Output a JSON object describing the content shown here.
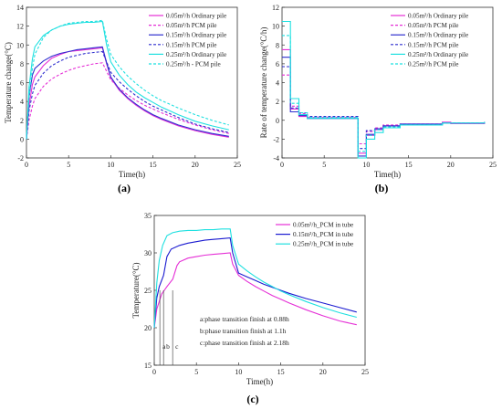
{
  "charts": {
    "a": {
      "panel_label": "(a)",
      "xlabel": "Time(h)",
      "ylabel": "Temperature change(°C)",
      "xlim": [
        0,
        25
      ],
      "ylim": [
        -2,
        14
      ],
      "xticks": [
        0,
        5,
        10,
        15,
        20,
        25
      ],
      "yticks": [
        -2,
        0,
        2,
        4,
        6,
        8,
        10,
        12,
        14
      ],
      "legend": [
        {
          "label": "0.05m³/h Ordinary pile",
          "color": "#e52fd6",
          "dash": "solid"
        },
        {
          "label": "0.05m³/h PCM pile",
          "color": "#e52fd6",
          "dash": "dashed"
        },
        {
          "label": "0.15m³/h Ordinary pile",
          "color": "#2f2fcf",
          "dash": "solid"
        },
        {
          "label": "0.15m³/h PCM pile",
          "color": "#2f2fcf",
          "dash": "dashed"
        },
        {
          "label": "0.25m³/h Ordinary pile",
          "color": "#1fe0e0",
          "dash": "solid"
        },
        {
          "label": "0.25m³/h - PCM pile",
          "color": "#1fe0e0",
          "dash": "dashed"
        }
      ]
    },
    "b": {
      "panel_label": "(b)",
      "xlabel": "Time(h)",
      "ylabel": "Rate of temperature change(°C/h)",
      "xlim": [
        0,
        25
      ],
      "ylim": [
        -4,
        12
      ],
      "xticks": [
        0,
        5,
        10,
        15,
        20,
        25
      ],
      "yticks": [
        -4,
        -2,
        0,
        2,
        4,
        6,
        8,
        10,
        12
      ],
      "legend": [
        {
          "label": "0.05m³/h Ordinary pile",
          "color": "#e52fd6",
          "dash": "solid"
        },
        {
          "label": "0.05m³/h PCM pile",
          "color": "#e52fd6",
          "dash": "dashed"
        },
        {
          "label": "0.15m³/h Ordinary pile",
          "color": "#2f2fcf",
          "dash": "solid"
        },
        {
          "label": "0.15m³/h PCM pile",
          "color": "#2f2fcf",
          "dash": "dashed"
        },
        {
          "label": "0.25m³/h Ordinary pile",
          "color": "#1fe0e0",
          "dash": "solid"
        },
        {
          "label": "0.25m³/h PCM pile",
          "color": "#1fe0e0",
          "dash": "dashed"
        }
      ]
    },
    "c": {
      "panel_label": "(c)",
      "xlabel": "Time(h)",
      "ylabel": "Temperature(°C)",
      "xlim": [
        0,
        25
      ],
      "ylim": [
        15,
        35
      ],
      "xticks": [
        0,
        5,
        10,
        15,
        20,
        25
      ],
      "yticks": [
        15,
        20,
        25,
        30,
        35
      ],
      "legend": [
        {
          "label": "0.05m³/h_PCM in tube",
          "color": "#e52fd6",
          "dash": "solid"
        },
        {
          "label": "0.15m³/h_PCM in tube",
          "color": "#1a1ad0",
          "dash": "solid"
        },
        {
          "label": "0.25m³/h_PCM in tube",
          "color": "#1fe0e0",
          "dash": "solid"
        }
      ],
      "annotations": [
        "a:phase transition finish at 0.88h",
        "b:phase transition finish at 1.1h",
        "c:phase transition finish at 2.18h"
      ],
      "marker_letters": [
        "a",
        "b",
        "c"
      ],
      "marker_x": [
        0.88,
        1.1,
        2.18
      ]
    }
  },
  "chart_data": [
    {
      "type": "line",
      "xlabel": "Time(h)",
      "ylabel": "Temperature change(°C)",
      "xlim": [
        0,
        25
      ],
      "ylim": [
        -2,
        14
      ],
      "series": [
        {
          "name": "0.05m³/h Ordinary pile",
          "color": "#e52fd6",
          "dash": "solid",
          "x": [
            0,
            0.3,
            0.7,
            1,
            2,
            3,
            4,
            5,
            6,
            7,
            8,
            9,
            9.5,
            10,
            11,
            12,
            13,
            14,
            15,
            16,
            18,
            20,
            22,
            24
          ],
          "y": [
            0,
            3.5,
            5.8,
            6.6,
            7.8,
            8.6,
            9.0,
            9.3,
            9.4,
            9.5,
            9.6,
            9.7,
            8.0,
            6.5,
            5.2,
            4.3,
            3.6,
            3.0,
            2.5,
            2.1,
            1.4,
            0.9,
            0.5,
            0.2
          ]
        },
        {
          "name": "0.05m³/h PCM pile",
          "color": "#e52fd6",
          "dash": "dashed",
          "x": [
            0,
            0.3,
            0.7,
            1,
            2,
            3,
            4,
            5,
            6,
            7,
            8,
            9,
            9.5,
            10,
            11,
            12,
            13,
            14,
            15,
            16,
            18,
            20,
            22,
            24
          ],
          "y": [
            0,
            2.0,
            3.5,
            4.3,
            5.6,
            6.4,
            6.9,
            7.3,
            7.6,
            7.8,
            8.0,
            8.1,
            7.2,
            6.3,
            5.4,
            4.7,
            4.1,
            3.6,
            3.2,
            2.8,
            2.1,
            1.5,
            1.0,
            0.6
          ]
        },
        {
          "name": "0.15m³/h Ordinary pile",
          "color": "#2f2fcf",
          "dash": "solid",
          "x": [
            0,
            0.3,
            0.7,
            1,
            2,
            3,
            4,
            5,
            6,
            7,
            8,
            9,
            9.5,
            10,
            11,
            12,
            13,
            14,
            15,
            16,
            18,
            20,
            22,
            24
          ],
          "y": [
            0,
            4.5,
            6.8,
            7.5,
            8.3,
            8.8,
            9.1,
            9.3,
            9.5,
            9.6,
            9.7,
            9.8,
            8.1,
            6.6,
            5.3,
            4.4,
            3.7,
            3.1,
            2.6,
            2.2,
            1.5,
            1.0,
            0.6,
            0.3
          ]
        },
        {
          "name": "0.15m³/h PCM pile",
          "color": "#2f2fcf",
          "dash": "dashed",
          "x": [
            0,
            0.3,
            0.7,
            1,
            2,
            3,
            4,
            5,
            6,
            7,
            8,
            9,
            9.5,
            10,
            11,
            12,
            13,
            14,
            15,
            16,
            18,
            20,
            22,
            24
          ],
          "y": [
            0,
            3.0,
            4.8,
            5.7,
            7.0,
            7.8,
            8.3,
            8.7,
            8.9,
            9.1,
            9.2,
            9.3,
            8.2,
            7.1,
            6.1,
            5.3,
            4.6,
            4.0,
            3.5,
            3.1,
            2.3,
            1.6,
            1.1,
            0.7
          ]
        },
        {
          "name": "0.25m³/h Ordinary pile",
          "color": "#1fe0e0",
          "dash": "solid",
          "x": [
            0,
            0.3,
            0.7,
            1,
            2,
            3,
            4,
            5,
            6,
            7,
            8,
            9,
            9.5,
            10,
            11,
            12,
            13,
            14,
            15,
            16,
            18,
            20,
            22,
            24
          ],
          "y": [
            0,
            5.5,
            8.5,
            9.8,
            11.0,
            11.6,
            12.0,
            12.2,
            12.3,
            12.4,
            12.4,
            12.5,
            10.0,
            8.2,
            6.8,
            5.8,
            5.0,
            4.4,
            3.9,
            3.4,
            2.6,
            1.9,
            1.4,
            1.0
          ]
        },
        {
          "name": "0.25m³/h - PCM pile",
          "color": "#1fe0e0",
          "dash": "dashed",
          "x": [
            0,
            0.3,
            0.7,
            1,
            2,
            3,
            4,
            5,
            6,
            7,
            8,
            9,
            9.5,
            10,
            11,
            12,
            13,
            14,
            15,
            16,
            18,
            20,
            22,
            24
          ],
          "y": [
            0,
            4.5,
            7.5,
            9.0,
            10.8,
            11.6,
            12.0,
            12.3,
            12.4,
            12.5,
            12.5,
            12.6,
            10.6,
            9.0,
            7.7,
            6.7,
            5.9,
            5.2,
            4.6,
            4.1,
            3.3,
            2.6,
            2.0,
            1.5
          ]
        }
      ]
    },
    {
      "type": "line",
      "xlabel": "Time(h)",
      "ylabel": "Rate of temperature change(°C/h)",
      "xlim": [
        0,
        25
      ],
      "ylim": [
        -4,
        12
      ],
      "series": [
        {
          "name": "0.05m³/h Ordinary pile",
          "color": "#e52fd6",
          "dash": "solid",
          "step": true,
          "x": [
            0,
            1,
            2,
            3,
            9,
            10,
            11,
            12,
            14,
            19,
            20,
            24
          ],
          "y": [
            7.5,
            1.2,
            0.4,
            0.2,
            -3.5,
            -1.6,
            -1.0,
            -0.6,
            -0.4,
            -0.2,
            -0.35,
            -0.2
          ]
        },
        {
          "name": "0.05m³/h PCM pile",
          "color": "#e52fd6",
          "dash": "dashed",
          "step": true,
          "x": [
            0,
            1,
            2,
            3,
            9,
            10,
            11,
            12,
            14,
            19,
            20,
            24
          ],
          "y": [
            4.8,
            1.5,
            0.7,
            0.3,
            -2.5,
            -1.2,
            -0.8,
            -0.5,
            -0.4,
            -0.3,
            -0.3,
            -0.2
          ]
        },
        {
          "name": "0.15m³/h Ordinary pile",
          "color": "#2f2fcf",
          "dash": "solid",
          "step": true,
          "x": [
            0,
            1,
            2,
            3,
            9,
            10,
            11,
            12,
            14,
            19,
            20,
            24
          ],
          "y": [
            6.7,
            0.9,
            0.5,
            0.2,
            -3.8,
            -1.5,
            -0.9,
            -0.6,
            -0.4,
            -0.3,
            -0.3,
            -0.2
          ]
        },
        {
          "name": "0.15m³/h PCM pile",
          "color": "#2f2fcf",
          "dash": "dashed",
          "step": true,
          "x": [
            0,
            1,
            2,
            3,
            9,
            10,
            11,
            12,
            14,
            19,
            20,
            24
          ],
          "y": [
            5.7,
            1.3,
            0.8,
            0.4,
            -3.0,
            -1.1,
            -0.9,
            -0.6,
            -0.5,
            -0.3,
            -0.3,
            -0.2
          ]
        },
        {
          "name": "0.25m³/h Ordinary pile",
          "color": "#1fe0e0",
          "dash": "solid",
          "step": true,
          "x": [
            0,
            1,
            2,
            3,
            9,
            10,
            11,
            12,
            14,
            19,
            20,
            24
          ],
          "y": [
            10.5,
            2.3,
            0.6,
            0.2,
            -4.0,
            -2.0,
            -1.3,
            -0.8,
            -0.5,
            -0.3,
            -0.3,
            -0.2
          ]
        },
        {
          "name": "0.25m³/h PCM pile",
          "color": "#1fe0e0",
          "dash": "dashed",
          "step": true,
          "x": [
            0,
            1,
            2,
            3,
            9,
            10,
            11,
            12,
            14,
            19,
            20,
            24
          ],
          "y": [
            9.0,
            1.8,
            0.8,
            0.3,
            -3.3,
            -1.6,
            -1.0,
            -0.7,
            -0.5,
            -0.3,
            -0.3,
            -0.2
          ]
        }
      ]
    },
    {
      "type": "line",
      "xlabel": "Time(h)",
      "ylabel": "Temperature(°C)",
      "xlim": [
        0,
        25
      ],
      "ylim": [
        15,
        35
      ],
      "series": [
        {
          "name": "0.05m³/h_PCM in tube",
          "color": "#e52fd6",
          "dash": "solid",
          "x": [
            0,
            0.3,
            0.88,
            1.5,
            2.2,
            2.7,
            3,
            4,
            5,
            6,
            7,
            8,
            9,
            9.3,
            10,
            11,
            12,
            13,
            14,
            15,
            16,
            18,
            20,
            22,
            24
          ],
          "y": [
            20,
            22.5,
            24.5,
            25.5,
            26.5,
            28.3,
            28.8,
            29.3,
            29.5,
            29.7,
            29.8,
            29.9,
            30.0,
            28.5,
            27.0,
            26.2,
            25.5,
            24.9,
            24.3,
            23.8,
            23.3,
            22.4,
            21.6,
            20.9,
            20.4
          ]
        },
        {
          "name": "0.15m³/h_PCM in tube",
          "color": "#1a1ad0",
          "dash": "solid",
          "x": [
            0,
            0.3,
            0.6,
            1.1,
            1.5,
            2,
            3,
            4,
            5,
            6,
            7,
            8,
            9,
            9.3,
            10,
            11,
            12,
            13,
            14,
            15,
            16,
            18,
            20,
            22,
            24
          ],
          "y": [
            20,
            24.0,
            25.5,
            27.0,
            29.5,
            30.5,
            31.0,
            31.3,
            31.5,
            31.7,
            31.8,
            31.9,
            32.0,
            30.0,
            27.3,
            26.8,
            26.3,
            25.8,
            25.4,
            25.0,
            24.6,
            23.9,
            23.3,
            22.7,
            22.1
          ]
        },
        {
          "name": "0.25m³/h_PCM in tube",
          "color": "#1fe0e0",
          "dash": "solid",
          "x": [
            0,
            0.3,
            0.6,
            1.0,
            1.5,
            2.18,
            3,
            4,
            5,
            6,
            7,
            8,
            9,
            9.3,
            10,
            11,
            12,
            13,
            14,
            15,
            16,
            18,
            20,
            22,
            24
          ],
          "y": [
            20,
            26.0,
            29.0,
            31.0,
            32.3,
            32.7,
            32.9,
            33.0,
            33.0,
            33.1,
            33.1,
            33.2,
            33.2,
            31.0,
            28.5,
            27.6,
            26.8,
            26.1,
            25.5,
            24.9,
            24.4,
            23.5,
            22.7,
            22.0,
            21.4
          ]
        }
      ]
    }
  ]
}
